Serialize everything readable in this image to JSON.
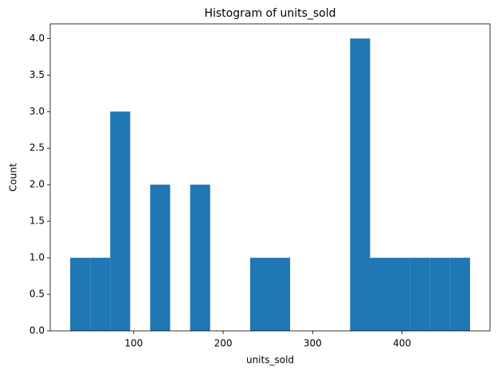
{
  "chart_data": {
    "type": "histogram",
    "title": "Histogram of units_sold",
    "x_label": "units_sold",
    "y_label": "Count",
    "bins": [
      29,
      51.35,
      73.7,
      96.05,
      118.4,
      140.75,
      163.1,
      185.45,
      207.8,
      230.15,
      252.5,
      274.85,
      297.2,
      319.55,
      341.9,
      364.25,
      386.6,
      408.95,
      431.3,
      453.65,
      476
    ],
    "values": [
      1,
      1,
      3,
      0,
      2,
      0,
      2,
      0,
      0,
      1,
      1,
      0,
      0,
      0,
      4,
      1,
      1,
      1,
      1,
      1
    ],
    "color": "#1f77b4",
    "xlim": [
      6.65,
      498.35
    ],
    "xticks": [
      100,
      200,
      300,
      400
    ],
    "ylim": [
      0,
      4.2
    ],
    "yticks": [
      {
        "value": 0,
        "label": "0.0"
      },
      {
        "value": 0.5,
        "label": "0.5"
      },
      {
        "value": 1,
        "label": "1.0"
      },
      {
        "value": 1.5,
        "label": "1.5"
      },
      {
        "value": 2,
        "label": "2.0"
      },
      {
        "value": 2.5,
        "label": "2.5"
      },
      {
        "value": 3,
        "label": "3.0"
      },
      {
        "value": 3.5,
        "label": "3.5"
      },
      {
        "value": 4,
        "label": "4.0"
      }
    ],
    "grid": false
  }
}
